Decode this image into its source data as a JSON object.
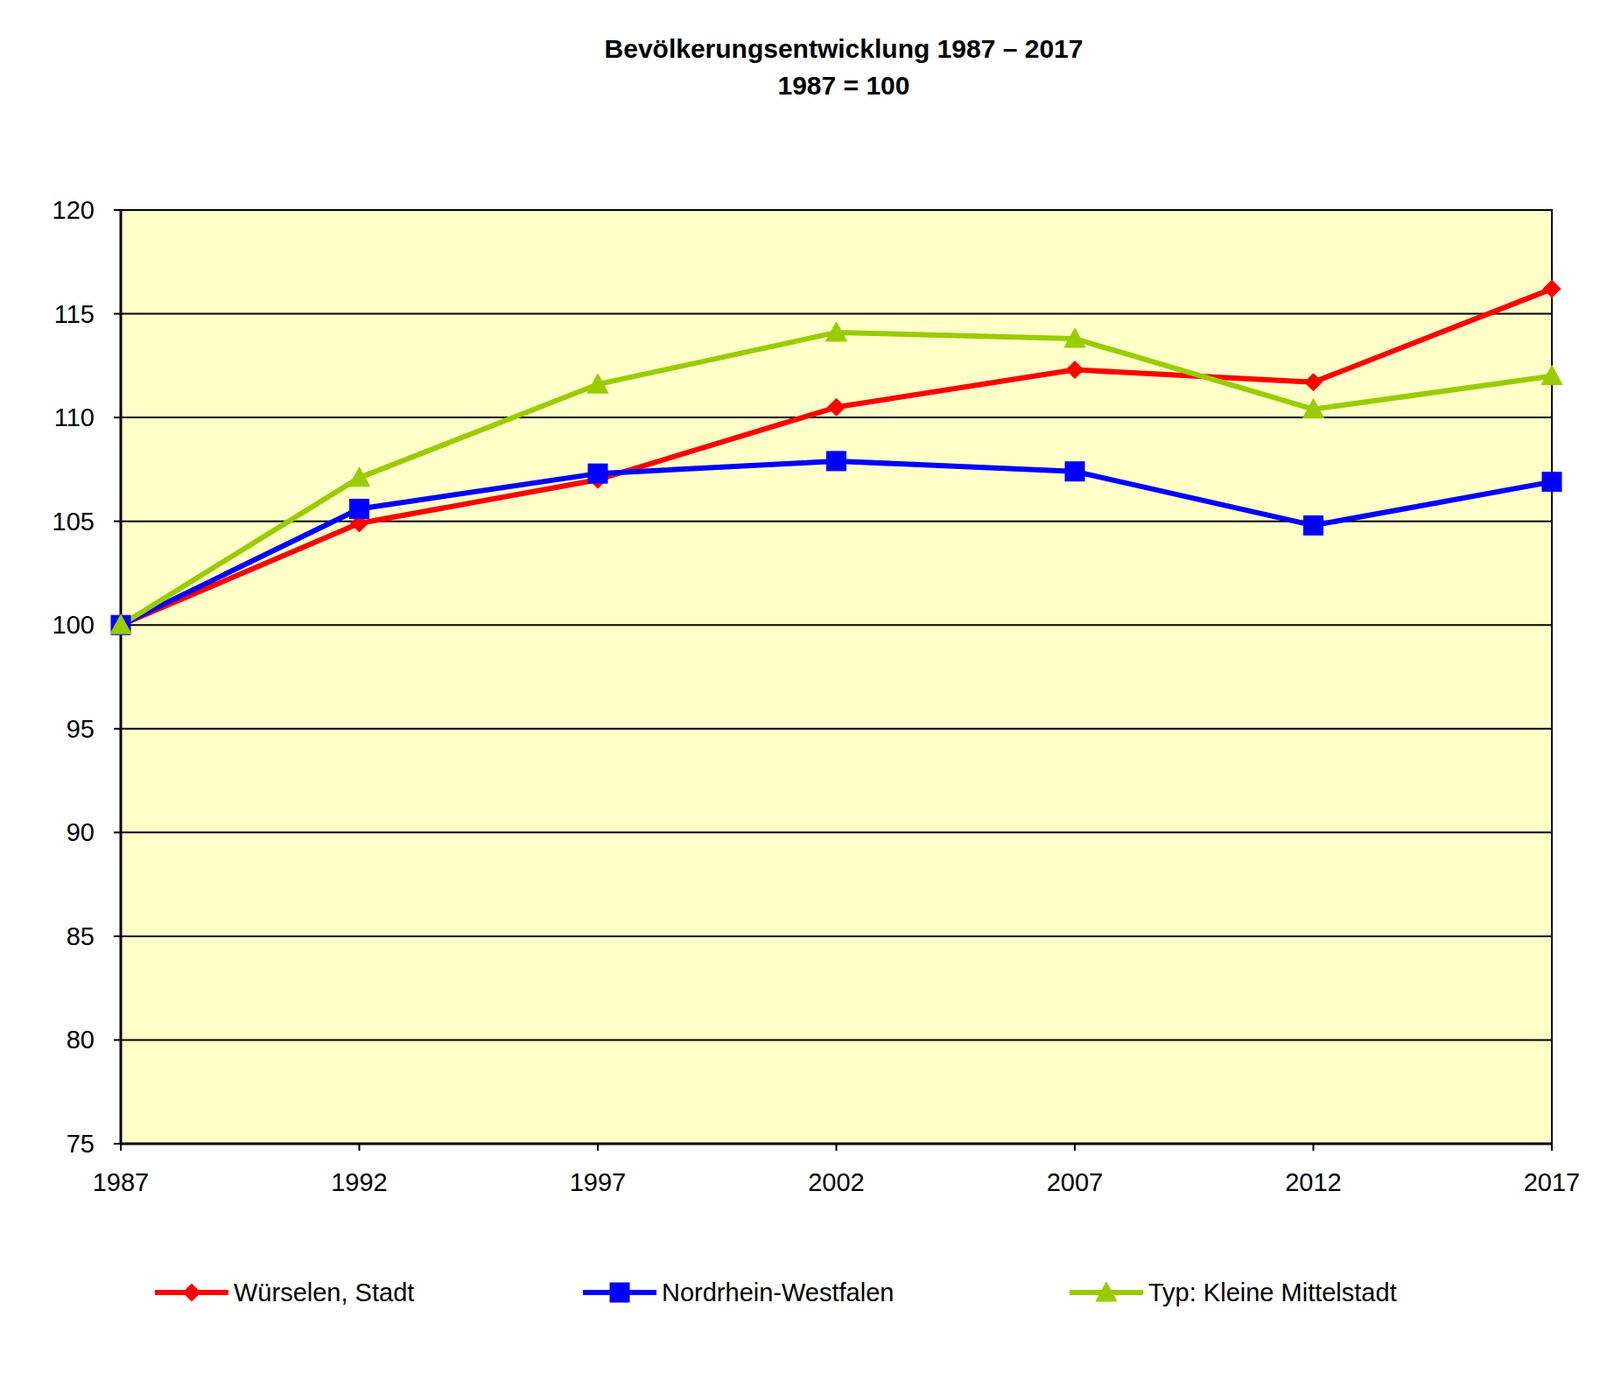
{
  "chart_data": {
    "type": "line",
    "title": "Bevölkerungsentwicklung 1987 – 2017",
    "subtitle": "1987 = 100",
    "x": [
      1987,
      1992,
      1997,
      2002,
      2007,
      2012,
      2017
    ],
    "xlim": [
      1987,
      2017
    ],
    "xticks": [
      1987,
      1992,
      1997,
      2002,
      2007,
      2012,
      2017
    ],
    "ylim": [
      75,
      120
    ],
    "yticks": [
      75,
      80,
      85,
      90,
      95,
      100,
      105,
      110,
      115,
      120
    ],
    "grid": true,
    "legend": "bottom",
    "series": [
      {
        "name": "Würselen, Stadt",
        "color": "#ff0000",
        "marker": "diamond",
        "values": [
          100,
          104.9,
          107.0,
          110.5,
          112.3,
          111.7,
          116.2
        ]
      },
      {
        "name": "Nordrhein-Westfalen",
        "color": "#0000ff",
        "marker": "square",
        "values": [
          100,
          105.6,
          107.3,
          107.9,
          107.4,
          104.8,
          106.9
        ]
      },
      {
        "name": "Typ: Kleine Mittelstadt",
        "color": "#99cc00",
        "marker": "triangle",
        "values": [
          100,
          107.1,
          111.6,
          114.1,
          113.8,
          110.4,
          112.0
        ]
      }
    ]
  }
}
